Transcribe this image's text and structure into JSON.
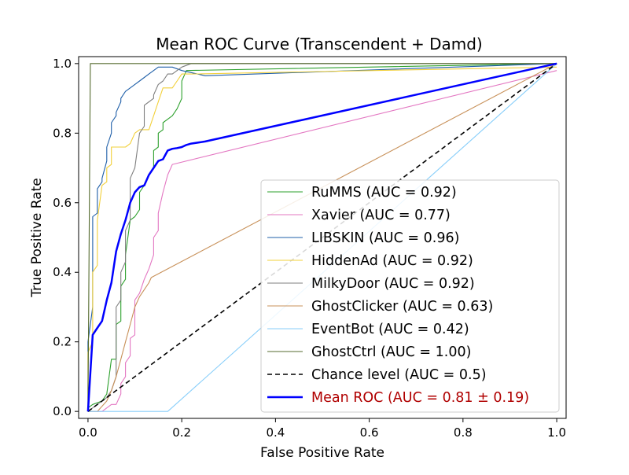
{
  "chart_data": {
    "type": "line",
    "title": "Mean ROC Curve (Transcendent + Damd)",
    "xlabel": "False Positive Rate",
    "ylabel": "True Positive Rate",
    "xlim": [
      -0.02,
      1.02
    ],
    "ylim": [
      -0.02,
      1.02
    ],
    "xticks": [
      0.0,
      0.2,
      0.4,
      0.6,
      0.8,
      1.0
    ],
    "yticks": [
      0.0,
      0.2,
      0.4,
      0.6,
      0.8,
      1.0
    ],
    "tick_labels": [
      "0.0",
      "0.2",
      "0.4",
      "0.6",
      "0.8",
      "1.0"
    ],
    "legend_position": "lower-right",
    "series": [
      {
        "name": "RuMMS",
        "label": "RuMMS (AUC = 0.92)",
        "color": "#2ca02c",
        "style": "thin",
        "x": [
          0.0,
          0.0,
          0.01,
          0.03,
          0.04,
          0.05,
          0.06,
          0.06,
          0.07,
          0.07,
          0.08,
          0.08,
          0.09,
          0.1,
          0.11,
          0.11,
          0.12,
          0.13,
          0.14,
          0.14,
          0.15,
          0.15,
          0.16,
          0.16,
          0.17,
          0.18,
          0.19,
          0.2,
          0.2,
          0.21,
          1.0
        ],
        "y": [
          0.0,
          0.01,
          0.02,
          0.03,
          0.05,
          0.15,
          0.15,
          0.25,
          0.26,
          0.36,
          0.38,
          0.45,
          0.55,
          0.56,
          0.58,
          0.63,
          0.65,
          0.68,
          0.7,
          0.75,
          0.76,
          0.8,
          0.81,
          0.83,
          0.84,
          0.85,
          0.87,
          0.9,
          0.95,
          0.98,
          1.0
        ]
      },
      {
        "name": "Xavier",
        "label": "Xavier (AUC = 0.77)",
        "color": "#e377c2",
        "style": "thin",
        "x": [
          0.0,
          0.03,
          0.05,
          0.06,
          0.07,
          0.07,
          0.08,
          0.08,
          0.09,
          0.09,
          0.1,
          0.1,
          0.11,
          0.12,
          0.13,
          0.14,
          0.14,
          0.15,
          0.15,
          0.16,
          0.17,
          0.18,
          1.0
        ],
        "y": [
          0.0,
          0.0,
          0.02,
          0.02,
          0.05,
          0.08,
          0.1,
          0.14,
          0.16,
          0.21,
          0.22,
          0.32,
          0.34,
          0.38,
          0.41,
          0.45,
          0.5,
          0.52,
          0.57,
          0.63,
          0.68,
          0.71,
          0.98
        ]
      },
      {
        "name": "LIBSKIN",
        "label": "LIBSKIN (AUC = 0.96)",
        "color": "#1f5fa8",
        "style": "thin",
        "x": [
          0.0,
          0.0,
          0.01,
          0.01,
          0.02,
          0.02,
          0.03,
          0.03,
          0.04,
          0.04,
          0.05,
          0.05,
          0.06,
          0.06,
          0.07,
          0.07,
          0.08,
          0.09,
          0.1,
          0.11,
          0.12,
          0.13,
          0.14,
          0.15,
          0.16,
          0.17,
          0.18,
          0.2,
          0.25,
          1.0
        ],
        "y": [
          0.0,
          0.2,
          0.3,
          0.56,
          0.57,
          0.64,
          0.66,
          0.67,
          0.72,
          0.76,
          0.8,
          0.83,
          0.85,
          0.86,
          0.89,
          0.9,
          0.92,
          0.93,
          0.94,
          0.95,
          0.96,
          0.97,
          0.98,
          0.99,
          0.99,
          0.99,
          0.99,
          0.98,
          0.965,
          1.0
        ]
      },
      {
        "name": "HiddenAd",
        "label": "HiddenAd (AUC = 0.92)",
        "color": "#f2d03a",
        "style": "thin",
        "x": [
          0.0,
          0.0,
          0.01,
          0.01,
          0.02,
          0.02,
          0.03,
          0.04,
          0.04,
          0.05,
          0.05,
          0.06,
          0.07,
          0.08,
          0.09,
          0.1,
          0.11,
          0.12,
          0.13,
          0.14,
          0.15,
          0.16,
          0.17,
          0.18,
          0.19,
          0.2,
          0.22,
          1.0
        ],
        "y": [
          0.0,
          0.17,
          0.2,
          0.4,
          0.42,
          0.55,
          0.65,
          0.66,
          0.7,
          0.71,
          0.76,
          0.76,
          0.76,
          0.76,
          0.77,
          0.8,
          0.81,
          0.81,
          0.81,
          0.85,
          0.89,
          0.93,
          0.93,
          0.93,
          0.95,
          0.97,
          0.97,
          0.99
        ]
      },
      {
        "name": "MilkyDoor",
        "label": "MilkyDoor (AUC = 0.92)",
        "color": "#7f7f7f",
        "style": "thin",
        "x": [
          0.0,
          0.01,
          0.02,
          0.04,
          0.05,
          0.06,
          0.06,
          0.07,
          0.07,
          0.08,
          0.08,
          0.09,
          0.09,
          0.1,
          0.11,
          0.12,
          0.12,
          0.13,
          0.14,
          0.14,
          0.15,
          0.16,
          0.17,
          0.18,
          0.19,
          0.2,
          0.22,
          1.0
        ],
        "y": [
          0.0,
          0.01,
          0.02,
          0.04,
          0.06,
          0.1,
          0.3,
          0.32,
          0.4,
          0.43,
          0.52,
          0.55,
          0.67,
          0.7,
          0.8,
          0.82,
          0.88,
          0.89,
          0.9,
          0.91,
          0.94,
          0.95,
          0.97,
          0.97,
          0.98,
          0.99,
          1.0,
          1.0
        ]
      },
      {
        "name": "GhostClicker",
        "label": "GhostClicker (AUC = 0.63)",
        "color": "#c8915a",
        "style": "thin",
        "x": [
          0.0,
          0.02,
          0.04,
          0.05,
          0.06,
          0.07,
          0.08,
          0.09,
          0.1,
          0.11,
          0.12,
          0.13,
          0.135,
          1.0
        ],
        "y": [
          0.0,
          0.0,
          0.03,
          0.06,
          0.1,
          0.15,
          0.2,
          0.25,
          0.3,
          0.33,
          0.35,
          0.37,
          0.385,
          1.0
        ]
      },
      {
        "name": "EventBot",
        "label": "EventBot (AUC = 0.42)",
        "color": "#87cefa",
        "style": "thin",
        "x": [
          0.0,
          0.17,
          1.0
        ],
        "y": [
          0.0,
          0.0,
          1.0
        ]
      },
      {
        "name": "GhostCtrl",
        "label": "GhostCtrl (AUC = 1.00)",
        "color": "#556b2f",
        "style": "thin",
        "x": [
          0.0,
          0.005,
          1.0
        ],
        "y": [
          0.0,
          1.0,
          1.0
        ]
      },
      {
        "name": "Chance level",
        "label": "Chance level (AUC = 0.5)",
        "color": "#000000",
        "style": "dashed",
        "x": [
          0.0,
          1.0
        ],
        "y": [
          0.0,
          1.0
        ]
      },
      {
        "name": "Mean ROC",
        "label": "Mean ROC (AUC = 0.81 ± 0.19)",
        "color": "#0000ff",
        "label_color": "#b00000",
        "style": "bold",
        "x": [
          0.0,
          0.01,
          0.02,
          0.03,
          0.04,
          0.05,
          0.06,
          0.07,
          0.08,
          0.09,
          0.1,
          0.11,
          0.12,
          0.13,
          0.14,
          0.15,
          0.16,
          0.17,
          0.18,
          0.19,
          0.2,
          0.21,
          0.22,
          0.25,
          1.0
        ],
        "y": [
          0.0,
          0.22,
          0.24,
          0.26,
          0.32,
          0.37,
          0.46,
          0.51,
          0.55,
          0.6,
          0.63,
          0.645,
          0.65,
          0.68,
          0.7,
          0.72,
          0.725,
          0.75,
          0.755,
          0.757,
          0.76,
          0.766,
          0.77,
          0.776,
          1.0
        ]
      }
    ]
  }
}
